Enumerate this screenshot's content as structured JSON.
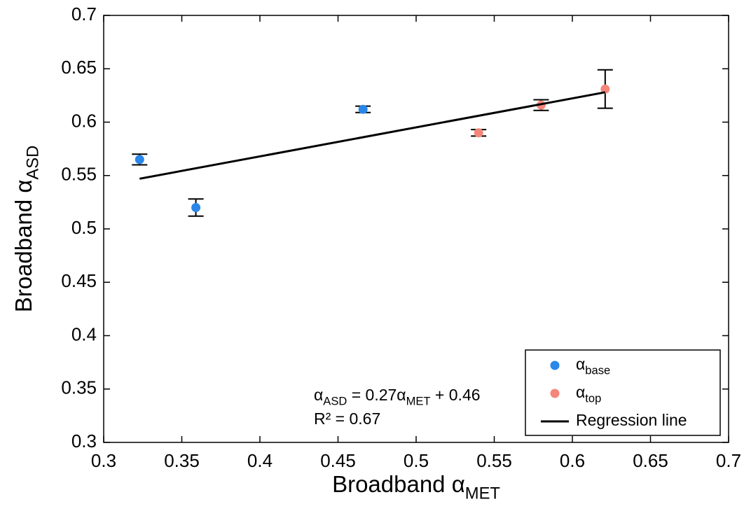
{
  "chart_data": {
    "type": "scatter",
    "x_label": [
      [
        "Broadband α",
        "MET"
      ]
    ],
    "y_label": [
      [
        "Broadband α",
        "ASD"
      ]
    ],
    "annotation": [
      [
        [
          "α",
          "ASD"
        ],
        [
          " = 0.27α",
          "MET"
        ],
        [
          " + 0.46"
        ]
      ],
      [
        [
          "R² = 0.67"
        ]
      ]
    ],
    "xlim": [
      0.3,
      0.7
    ],
    "ylim": [
      0.3,
      0.7
    ],
    "xticks": [
      0.3,
      0.35,
      0.4,
      0.45,
      0.5,
      0.55,
      0.6,
      0.65,
      0.7
    ],
    "yticks": [
      0.3,
      0.35,
      0.4,
      0.45,
      0.5,
      0.55,
      0.6,
      0.65,
      0.7
    ],
    "legend": "lower right",
    "series": [
      {
        "name": [
          [
            "α",
            "base"
          ]
        ],
        "type": "scatter",
        "color": "#2a86e8",
        "x": [
          0.323,
          0.359,
          0.466
        ],
        "values": [
          0.565,
          0.52,
          0.612
        ],
        "errors": [
          0.005,
          0.008,
          0.003
        ]
      },
      {
        "name": [
          [
            "α",
            "top"
          ]
        ],
        "type": "scatter",
        "color": "#f4877a",
        "x": [
          0.54,
          0.58,
          0.621
        ],
        "values": [
          0.59,
          0.616,
          0.631
        ],
        "errors": [
          0.003,
          0.005,
          0.018
        ]
      },
      {
        "name": "Regression line",
        "type": "line",
        "color": "#000000",
        "x": [
          0.323,
          0.621
        ],
        "values": [
          0.547,
          0.628
        ]
      }
    ]
  }
}
